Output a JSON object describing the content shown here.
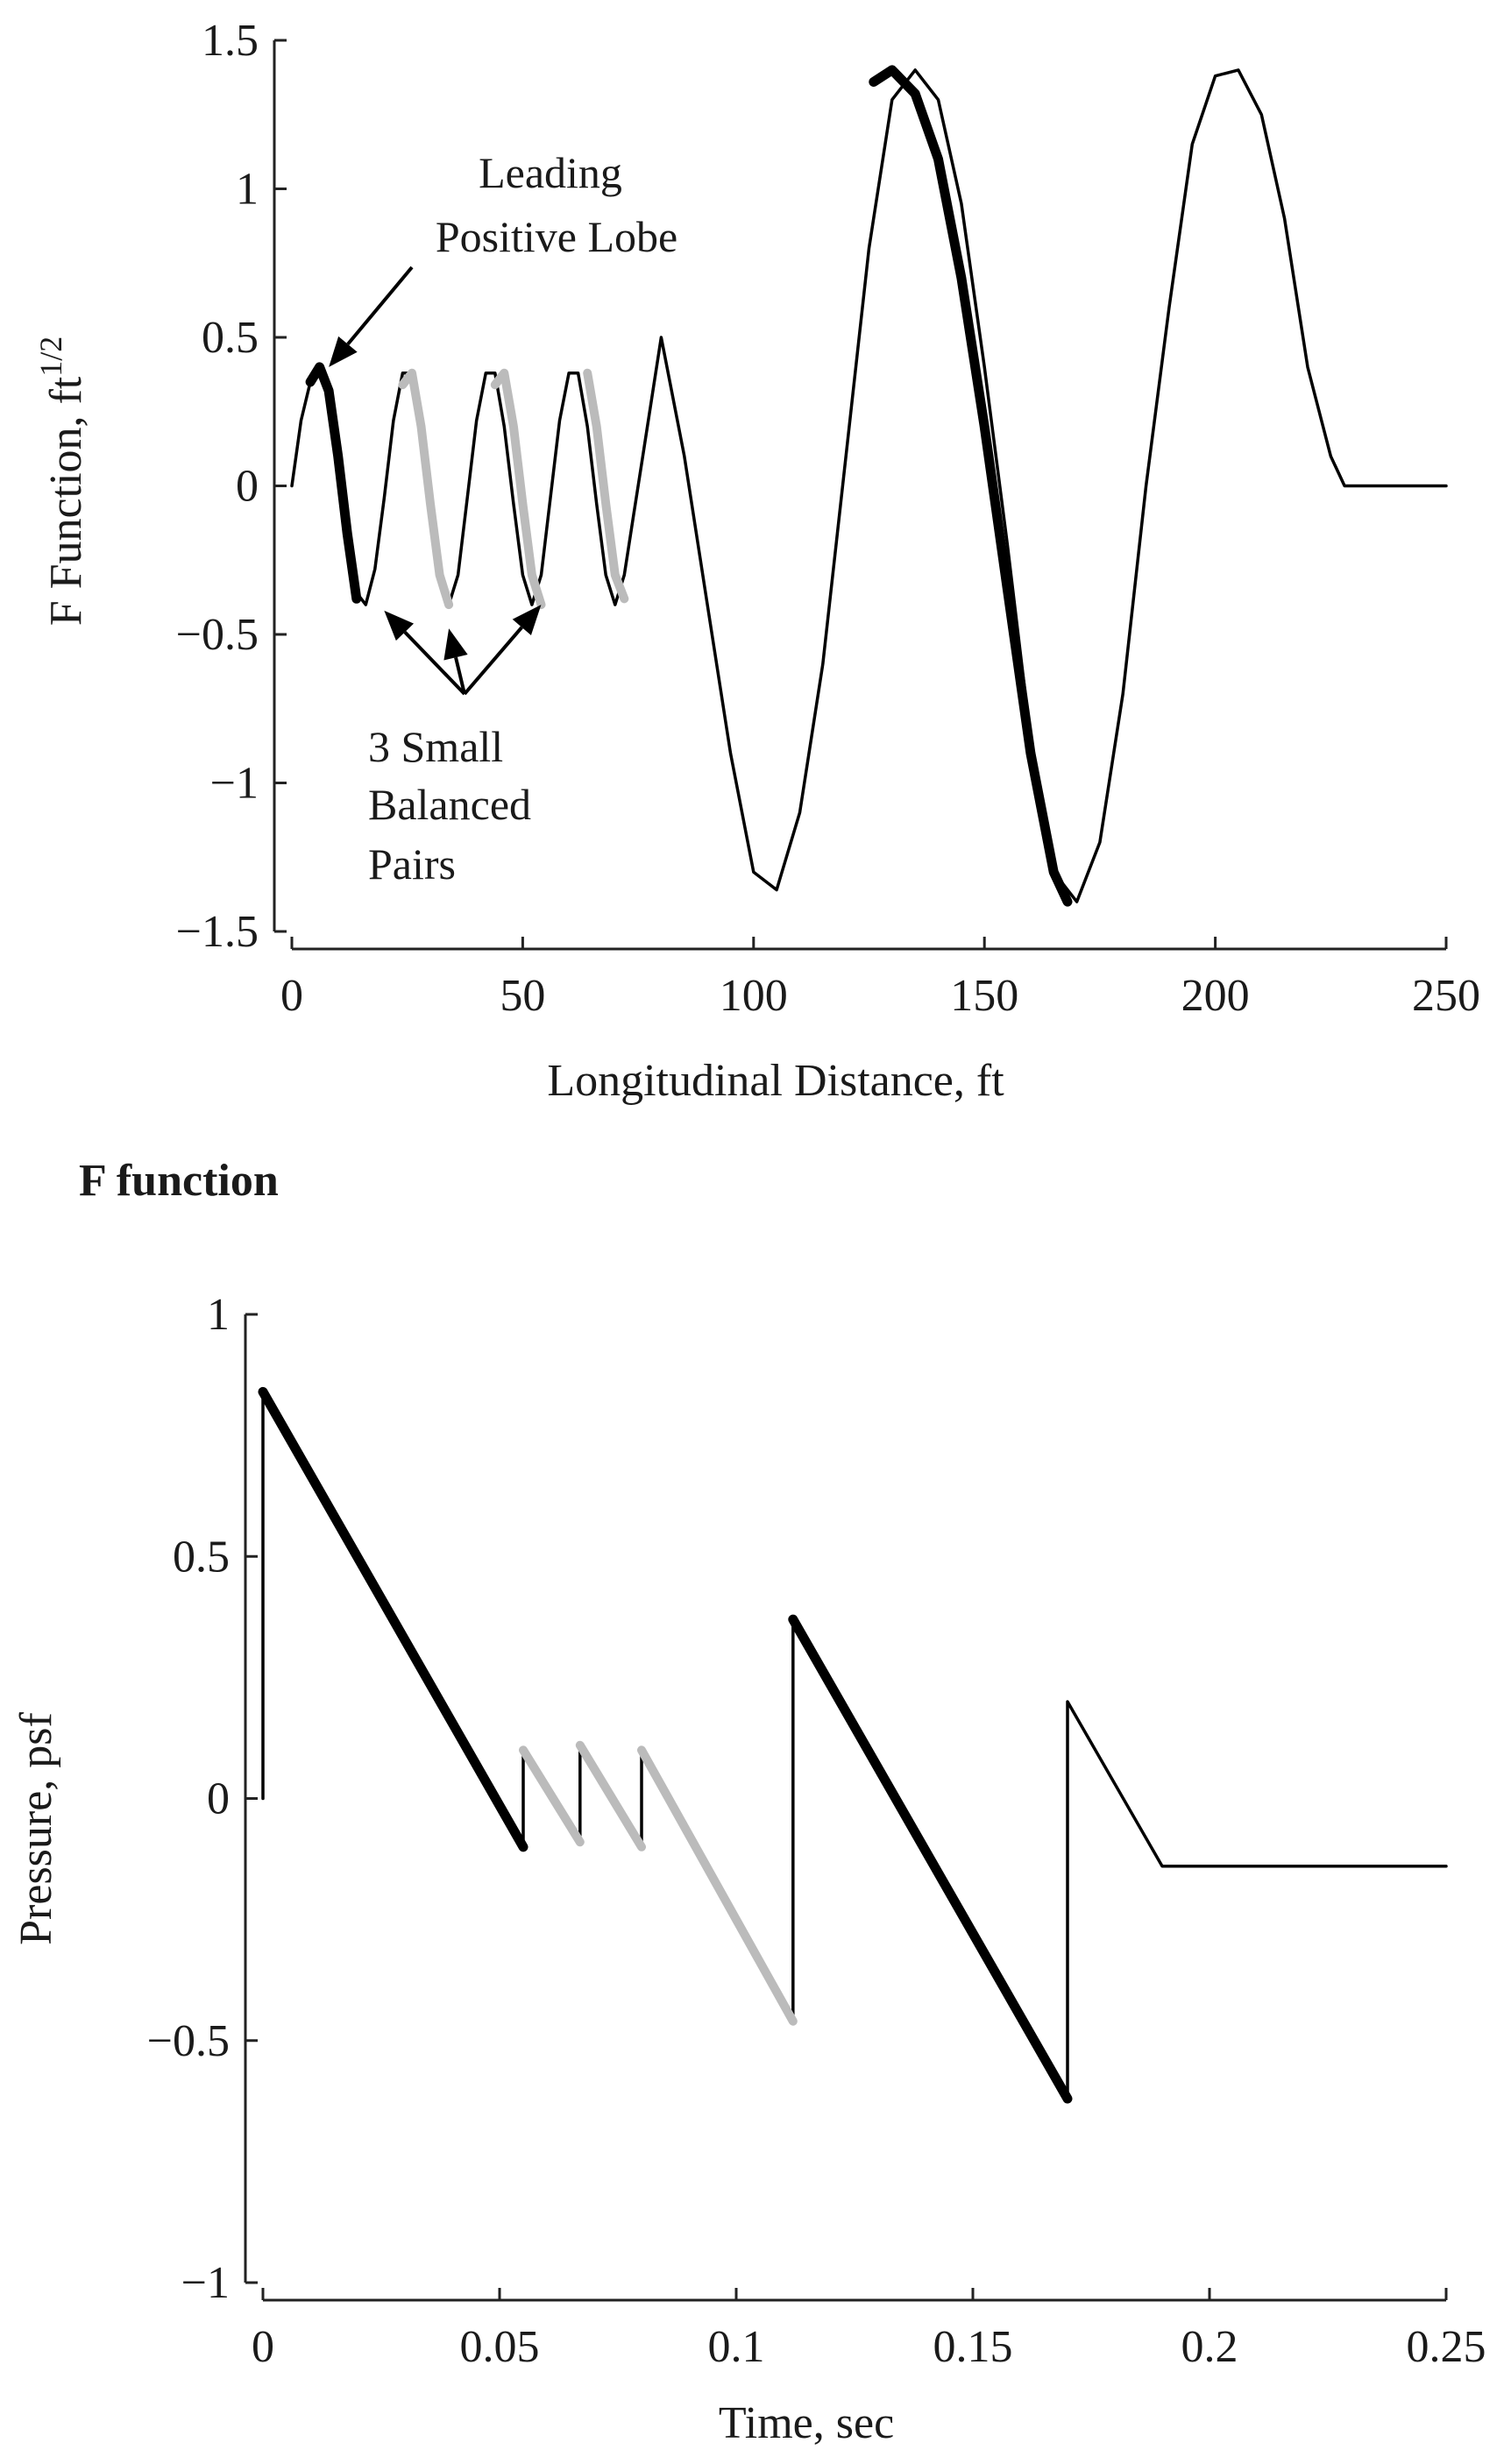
{
  "chart_data": [
    {
      "type": "line",
      "title": "",
      "caption": "F function",
      "xlabel": "Longitudinal Distance, ft",
      "ylabel": "F Function, ft",
      "ylabel_superscript": "1/2",
      "xlim": [
        0,
        250
      ],
      "ylim": [
        -1.5,
        1.5
      ],
      "xticks": [
        0,
        50,
        100,
        150,
        200,
        250
      ],
      "xtick_labels": [
        "0",
        "50",
        "100",
        "150",
        "200",
        "250"
      ],
      "yticks": [
        -1.5,
        -1,
        -0.5,
        0,
        0.5,
        1,
        1.5
      ],
      "ytick_labels": [
        "−1.5",
        "−1",
        "−0.5",
        "0",
        "0.5",
        "1",
        "1.5"
      ],
      "grid": false,
      "colors": {
        "thick": "#000000",
        "gray": "#bbbbbb",
        "thin": "#000000"
      },
      "series": [
        {
          "style": "thin",
          "x": [
            0,
            2,
            4,
            6,
            8,
            10,
            12,
            14,
            16,
            18,
            20,
            22,
            24,
            26,
            28,
            30,
            32,
            34,
            36,
            38,
            40,
            42,
            44,
            46,
            48,
            50,
            52,
            54,
            56,
            58,
            60,
            62,
            64,
            66,
            68,
            70,
            72,
            74,
            76,
            80,
            85,
            90,
            95,
            100,
            105,
            110,
            115,
            120,
            125,
            130,
            135,
            140,
            145,
            150,
            155,
            160,
            165,
            170,
            175,
            180,
            185,
            190,
            195,
            200,
            205,
            210,
            215,
            220,
            225,
            228,
            228.5,
            230,
            235,
            240,
            245,
            250
          ],
          "y": [
            0,
            0.22,
            0.35,
            0.4,
            0.32,
            0.1,
            -0.16,
            -0.36,
            -0.4,
            -0.28,
            -0.04,
            0.22,
            0.38,
            0.38,
            0.2,
            -0.06,
            -0.3,
            -0.4,
            -0.3,
            -0.04,
            0.22,
            0.38,
            0.38,
            0.2,
            -0.06,
            -0.3,
            -0.4,
            -0.3,
            -0.04,
            0.22,
            0.38,
            0.38,
            0.2,
            -0.06,
            -0.3,
            -0.4,
            -0.3,
            -0.1,
            0.1,
            0.5,
            0.1,
            -0.4,
            -0.9,
            -1.3,
            -1.36,
            -1.1,
            -0.6,
            0.1,
            0.8,
            1.3,
            1.4,
            1.3,
            0.95,
            0.4,
            -0.2,
            -0.85,
            -1.3,
            -1.4,
            -1.2,
            -0.7,
            0,
            0.6,
            1.15,
            1.38,
            1.4,
            1.25,
            0.9,
            0.4,
            0.1,
            0,
            0,
            0,
            0,
            0,
            0,
            0
          ]
        },
        {
          "style": "thick",
          "x": [
            4,
            6,
            8,
            10,
            12,
            14
          ],
          "y": [
            0.35,
            0.4,
            0.32,
            0.1,
            -0.16,
            -0.38
          ]
        },
        {
          "style": "gray",
          "x": [
            24,
            26,
            28,
            30,
            32,
            34
          ],
          "y": [
            0.34,
            0.38,
            0.2,
            -0.06,
            -0.3,
            -0.4
          ]
        },
        {
          "style": "gray",
          "x": [
            44,
            46,
            48,
            50,
            52,
            54
          ],
          "y": [
            0.34,
            0.38,
            0.2,
            -0.06,
            -0.3,
            -0.4
          ]
        },
        {
          "style": "gray",
          "x": [
            64,
            66,
            68,
            70,
            72
          ],
          "y": [
            0.38,
            0.2,
            -0.06,
            -0.3,
            -0.38
          ]
        },
        {
          "style": "thick",
          "x": [
            126,
            130,
            135,
            140,
            145,
            150,
            155,
            160,
            165,
            168
          ],
          "y": [
            1.36,
            1.4,
            1.32,
            1.1,
            0.7,
            0.2,
            -0.35,
            -0.9,
            -1.3,
            -1.4
          ]
        }
      ],
      "annotations": [
        {
          "lines": [
            "Leading",
            "Positive Lobe"
          ],
          "arrows_to": [
            [
              8,
              0.4
            ]
          ]
        },
        {
          "lines": [
            "3 Small",
            "Balanced",
            "Pairs"
          ],
          "arrows_to": [
            [
              20,
              -0.42
            ],
            [
              34,
              -0.48
            ],
            [
              54,
              -0.4
            ]
          ]
        }
      ]
    },
    {
      "type": "line",
      "title": "",
      "xlabel": "Time, sec",
      "ylabel": "Pressure, psf",
      "xlim": [
        0,
        0.25
      ],
      "ylim": [
        -1,
        1
      ],
      "xticks": [
        0,
        0.05,
        0.1,
        0.15,
        0.2,
        0.25
      ],
      "xtick_labels": [
        "0",
        "0.05",
        "0.1",
        "0.15",
        "0.2",
        "0.25"
      ],
      "yticks": [
        -1,
        -0.5,
        0,
        0.5,
        1
      ],
      "ytick_labels": [
        "−1",
        "−0.5",
        "0",
        "0.5",
        "1"
      ],
      "grid": false,
      "colors": {
        "thick": "#000000",
        "gray": "#bbbbbb",
        "thin": "#000000"
      },
      "series": [
        {
          "style": "thin",
          "x": [
            0,
            0,
            0.055,
            0.055,
            0.067,
            0.067,
            0.08,
            0.08,
            0.112,
            0.112,
            0.17,
            0.17,
            0.19,
            0.25
          ],
          "y": [
            0,
            0.84,
            -0.1,
            0.1,
            -0.09,
            0.11,
            -0.1,
            0.1,
            -0.46,
            0.37,
            -0.62,
            0.2,
            -0.14,
            -0.14
          ]
        },
        {
          "style": "thick",
          "x": [
            0,
            0.055
          ],
          "y": [
            0.84,
            -0.1
          ]
        },
        {
          "style": "gray",
          "x": [
            0.055,
            0.067
          ],
          "y": [
            0.1,
            -0.09
          ]
        },
        {
          "style": "gray",
          "x": [
            0.067,
            0.08
          ],
          "y": [
            0.11,
            -0.1
          ]
        },
        {
          "style": "gray",
          "x": [
            0.08,
            0.112
          ],
          "y": [
            0.1,
            -0.46
          ]
        },
        {
          "style": "thick",
          "x": [
            0.112,
            0.17
          ],
          "y": [
            0.37,
            -0.62
          ]
        }
      ]
    }
  ]
}
